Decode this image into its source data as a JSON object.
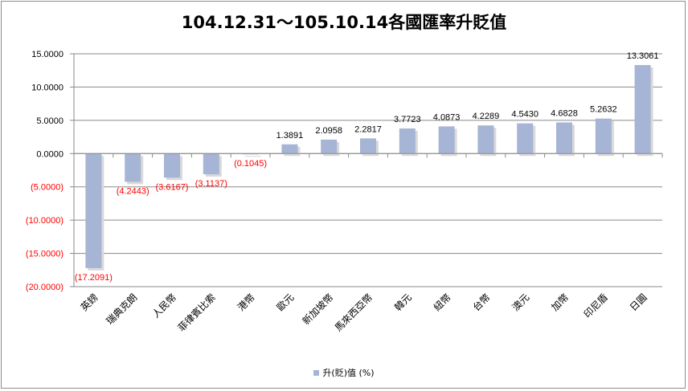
{
  "chart_data": {
    "type": "bar",
    "title": "104.12.31～105.10.14各國匯率升貶值",
    "categories": [
      "英鎊",
      "瑞典克朗",
      "人民幣",
      "菲律賓比索",
      "港幣",
      "歐元",
      "新加坡幣",
      "馬來西亞幣",
      "韓元",
      "紐幣",
      "台幣",
      "澳元",
      "加幣",
      "印尼盾",
      "日圓"
    ],
    "series": [
      {
        "name": "升(貶)值 (%)",
        "values": [
          -17.2091,
          -4.2443,
          -3.6167,
          -3.1137,
          -0.1045,
          1.3891,
          2.0958,
          2.2817,
          3.7723,
          4.0873,
          4.2289,
          4.543,
          4.6828,
          5.2632,
          13.3061
        ],
        "labels": [
          "(17.2091)",
          "(4.2443)",
          "(3.6167)",
          "(3.1137)",
          "(0.1045)",
          "1.3891",
          "2.0958",
          "2.2817",
          "3.7723",
          "4.0873",
          "4.2289",
          "4.5430",
          "4.6828",
          "5.2632",
          "13.3061"
        ]
      }
    ],
    "ylim": [
      -20,
      15
    ],
    "yticks": [
      15,
      10,
      5,
      0,
      -5,
      -10,
      -15,
      -20
    ],
    "ytick_labels": [
      "15.0000",
      "10.0000",
      "5.0000",
      "0.0000",
      "(5.0000)",
      "(10.0000)",
      "(15.0000)",
      "(20.0000)"
    ],
    "grid": true,
    "legend_position": "bottom",
    "bar_color": "#a6b4d5",
    "negative_label_color": "#ff0000",
    "positive_label_color": "#000000"
  }
}
